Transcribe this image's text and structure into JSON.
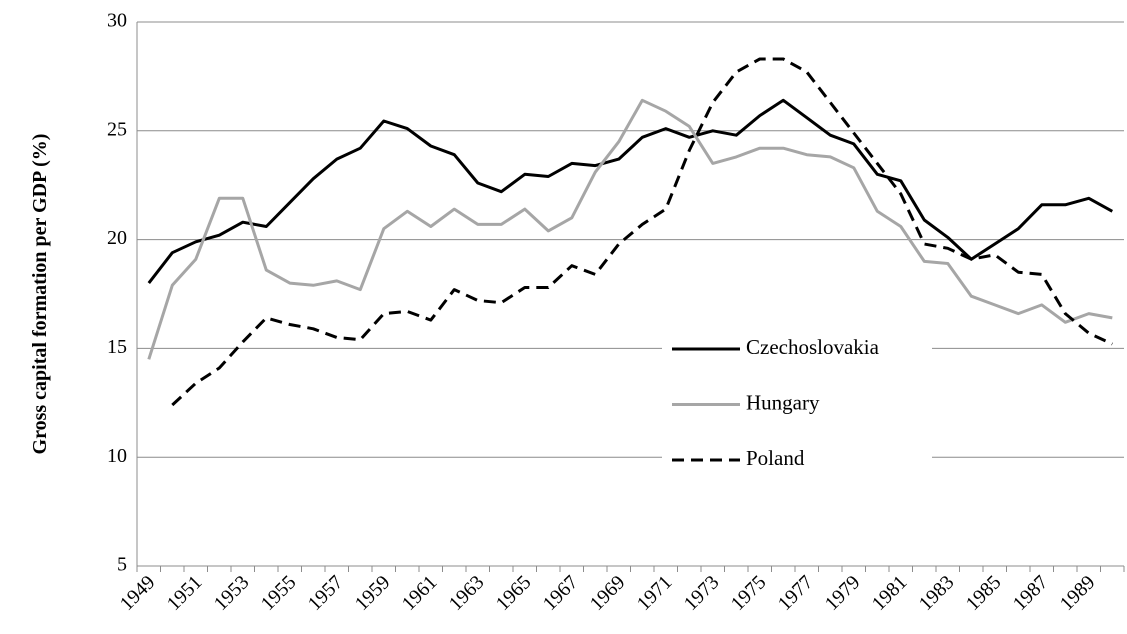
{
  "chart_data": {
    "type": "line",
    "y_label": "Gross capital formation per GDP (%)",
    "categories": [
      "1949",
      null,
      "1951",
      null,
      "1953",
      null,
      "1955",
      null,
      "1957",
      null,
      "1959",
      null,
      "1961",
      null,
      "1963",
      null,
      "1965",
      null,
      "1967",
      null,
      "1969",
      null,
      "1971",
      null,
      "1973",
      null,
      "1975",
      null,
      "1977",
      null,
      "1979",
      null,
      "1981",
      null,
      "1983",
      null,
      "1985",
      null,
      "1987",
      null,
      "1989",
      null
    ],
    "series": [
      {
        "name": "Czechoslovakia",
        "color": "#000000",
        "dash": "solid",
        "values": [
          18.0,
          19.4,
          19.9,
          20.2,
          20.8,
          20.6,
          21.7,
          22.8,
          23.7,
          24.2,
          25.45,
          25.1,
          24.3,
          23.9,
          22.6,
          22.2,
          23.0,
          22.9,
          23.5,
          23.4,
          23.7,
          24.7,
          25.1,
          24.7,
          25.0,
          24.8,
          25.7,
          26.4,
          25.6,
          24.8,
          24.4,
          23.0,
          22.7,
          20.9,
          20.1,
          19.1,
          19.8,
          20.5,
          21.6,
          21.6,
          21.9,
          21.3
        ]
      },
      {
        "name": "Hungary",
        "color": "#a6a6a6",
        "dash": "solid",
        "values": [
          14.5,
          17.9,
          19.1,
          21.9,
          21.9,
          18.6,
          18.0,
          17.9,
          18.1,
          17.7,
          20.5,
          21.3,
          20.6,
          21.4,
          20.7,
          20.7,
          21.4,
          20.4,
          21.0,
          23.1,
          24.5,
          26.4,
          25.9,
          25.2,
          23.5,
          23.8,
          24.2,
          24.2,
          23.9,
          23.8,
          23.3,
          21.3,
          20.6,
          19.0,
          18.9,
          17.4,
          17.0,
          16.6,
          17.0,
          16.2,
          16.6,
          16.4
        ]
      },
      {
        "name": "Poland",
        "color": "#000000",
        "dash": "dashed",
        "values": [
          null,
          12.4,
          13.4,
          14.1,
          15.3,
          16.4,
          16.1,
          15.9,
          15.5,
          15.4,
          16.6,
          16.7,
          16.3,
          17.7,
          17.2,
          17.1,
          17.8,
          17.8,
          18.8,
          18.4,
          19.8,
          20.7,
          21.4,
          24.1,
          26.3,
          27.7,
          28.3,
          28.3,
          27.7,
          26.3,
          24.9,
          23.5,
          22.1,
          19.8,
          19.6,
          19.1,
          19.3,
          18.5,
          18.4,
          16.6,
          15.7,
          15.2
        ]
      }
    ],
    "ylim": [
      5,
      30
    ],
    "yticks": [
      5,
      10,
      15,
      20,
      25,
      30
    ],
    "grid": true
  }
}
